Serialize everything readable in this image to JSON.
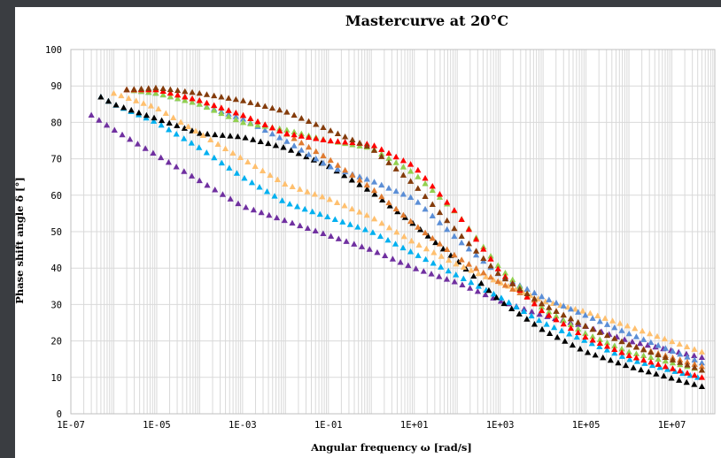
{
  "chart_data": {
    "type": "scatter",
    "title": "Mastercurve at 20°C",
    "xlabel": "Angular frequency ω [rad/s]",
    "ylabel": "Phase shift angle δ [°]",
    "x_scale": "log",
    "xlim": [
      1e-07,
      100000000.0
    ],
    "ylim": [
      0,
      100
    ],
    "x_ticks": [
      "1E-07",
      "1E-05",
      "1E-03",
      "1E-01",
      "1E+01",
      "1E+03",
      "1E+05",
      "1E+07"
    ],
    "y_ticks": [
      "0",
      "10",
      "20",
      "30",
      "40",
      "50",
      "60",
      "70",
      "80",
      "90",
      "100"
    ],
    "grid": "major horizontal, minor vertical",
    "legend": "none",
    "marker": "triangle",
    "series": [
      {
        "color": "#7030a0",
        "points": [
          [
            3e-07,
            82
          ],
          [
            1e-06,
            78
          ],
          [
            1e-05,
            71
          ],
          [
            0.0001,
            64
          ],
          [
            0.001,
            57
          ],
          [
            0.01,
            53
          ],
          [
            0.1,
            49
          ],
          [
            1,
            45
          ],
          [
            10.0,
            40
          ],
          [
            100.0,
            36
          ],
          [
            1000.0,
            31
          ],
          [
            10000.0,
            27
          ],
          [
            100000.0,
            24
          ],
          [
            1000000.0,
            20
          ],
          [
            50000000.0,
            15.5
          ]
        ]
      },
      {
        "color": "#00b0f0",
        "points": [
          [
            5e-07,
            87
          ],
          [
            1e-06,
            85
          ],
          [
            1e-05,
            80
          ],
          [
            0.0001,
            73
          ],
          [
            0.001,
            65
          ],
          [
            0.01,
            58
          ],
          [
            0.1,
            54
          ],
          [
            1,
            50
          ],
          [
            10.0,
            44
          ],
          [
            100.0,
            38
          ],
          [
            1000.0,
            32
          ],
          [
            10000.0,
            25
          ],
          [
            100000.0,
            20
          ],
          [
            1000000.0,
            15
          ],
          [
            40000000.0,
            10
          ]
        ]
      },
      {
        "color": "#000000",
        "points": [
          [
            5e-07,
            87
          ],
          [
            1e-06,
            85
          ],
          [
            1e-05,
            81
          ],
          [
            0.0001,
            77
          ],
          [
            0.001,
            76
          ],
          [
            0.01,
            73
          ],
          [
            0.1,
            68
          ],
          [
            1,
            61
          ],
          [
            10.0,
            52
          ],
          [
            100.0,
            42
          ],
          [
            1000.0,
            31
          ],
          [
            10000.0,
            23
          ],
          [
            100000.0,
            17
          ],
          [
            1000000.0,
            13
          ],
          [
            50000000.0,
            7.5
          ]
        ]
      },
      {
        "color": "#ffc06f",
        "points": [
          [
            1e-06,
            88
          ],
          [
            1e-05,
            84
          ],
          [
            0.0001,
            77
          ],
          [
            0.001,
            70
          ],
          [
            0.01,
            63
          ],
          [
            0.1,
            59
          ],
          [
            1,
            54
          ],
          [
            10.0,
            47
          ],
          [
            100.0,
            41
          ],
          [
            1000.0,
            36
          ],
          [
            10000.0,
            31
          ],
          [
            100000.0,
            28
          ],
          [
            1000000.0,
            24
          ],
          [
            50000000.0,
            17
          ]
        ]
      },
      {
        "color": "#5b8ed6",
        "points": [
          [
            2e-06,
            89
          ],
          [
            1e-05,
            88
          ],
          [
            0.0001,
            85
          ],
          [
            0.001,
            81
          ],
          [
            0.01,
            75
          ],
          [
            0.1,
            68
          ],
          [
            1,
            64
          ],
          [
            10.0,
            59
          ],
          [
            100.0,
            48
          ],
          [
            1000.0,
            38
          ],
          [
            10000.0,
            32
          ],
          [
            100000.0,
            27
          ],
          [
            1000000.0,
            22
          ],
          [
            50000000.0,
            14
          ]
        ]
      },
      {
        "color": "#92d050",
        "points": [
          [
            2e-06,
            89
          ],
          [
            1e-05,
            88
          ],
          [
            0.0001,
            85
          ],
          [
            0.001,
            80
          ],
          [
            0.01,
            78
          ],
          [
            0.1,
            75
          ],
          [
            1,
            73
          ],
          [
            10.0,
            66
          ],
          [
            100.0,
            55
          ],
          [
            1000.0,
            40
          ],
          [
            10000.0,
            29
          ],
          [
            100000.0,
            22
          ],
          [
            1000000.0,
            17
          ],
          [
            50000000.0,
            12
          ]
        ]
      },
      {
        "color": "#e07b30",
        "points": [
          [
            2e-06,
            89
          ],
          [
            1e-05,
            89
          ],
          [
            0.0001,
            86
          ],
          [
            0.001,
            82
          ],
          [
            0.01,
            77
          ],
          [
            0.1,
            70
          ],
          [
            1,
            62
          ],
          [
            10.0,
            52
          ],
          [
            100.0,
            43
          ],
          [
            1000.0,
            36
          ],
          [
            10000.0,
            30
          ],
          [
            100000.0,
            24
          ],
          [
            1000000.0,
            19
          ],
          [
            50000000.0,
            13
          ]
        ]
      },
      {
        "color": "#ff0000",
        "points": [
          [
            2e-06,
            89
          ],
          [
            1e-05,
            89
          ],
          [
            0.0001,
            86
          ],
          [
            0.001,
            82
          ],
          [
            0.01,
            77
          ],
          [
            0.1,
            75
          ],
          [
            1,
            74
          ],
          [
            10.0,
            68
          ],
          [
            100.0,
            55
          ],
          [
            1000.0,
            39
          ],
          [
            10000.0,
            28
          ],
          [
            100000.0,
            21
          ],
          [
            1000000.0,
            16
          ],
          [
            50000000.0,
            10
          ]
        ]
      },
      {
        "color": "#843c0c",
        "points": [
          [
            2e-06,
            89
          ],
          [
            1e-05,
            89.5
          ],
          [
            0.0001,
            88
          ],
          [
            0.001,
            86
          ],
          [
            0.01,
            83
          ],
          [
            0.1,
            78
          ],
          [
            1,
            73
          ],
          [
            10.0,
            63
          ],
          [
            100.0,
            50
          ],
          [
            1000.0,
            38
          ],
          [
            10000.0,
            30
          ],
          [
            100000.0,
            24
          ],
          [
            1000000.0,
            19
          ],
          [
            50000000.0,
            12
          ]
        ]
      }
    ]
  }
}
